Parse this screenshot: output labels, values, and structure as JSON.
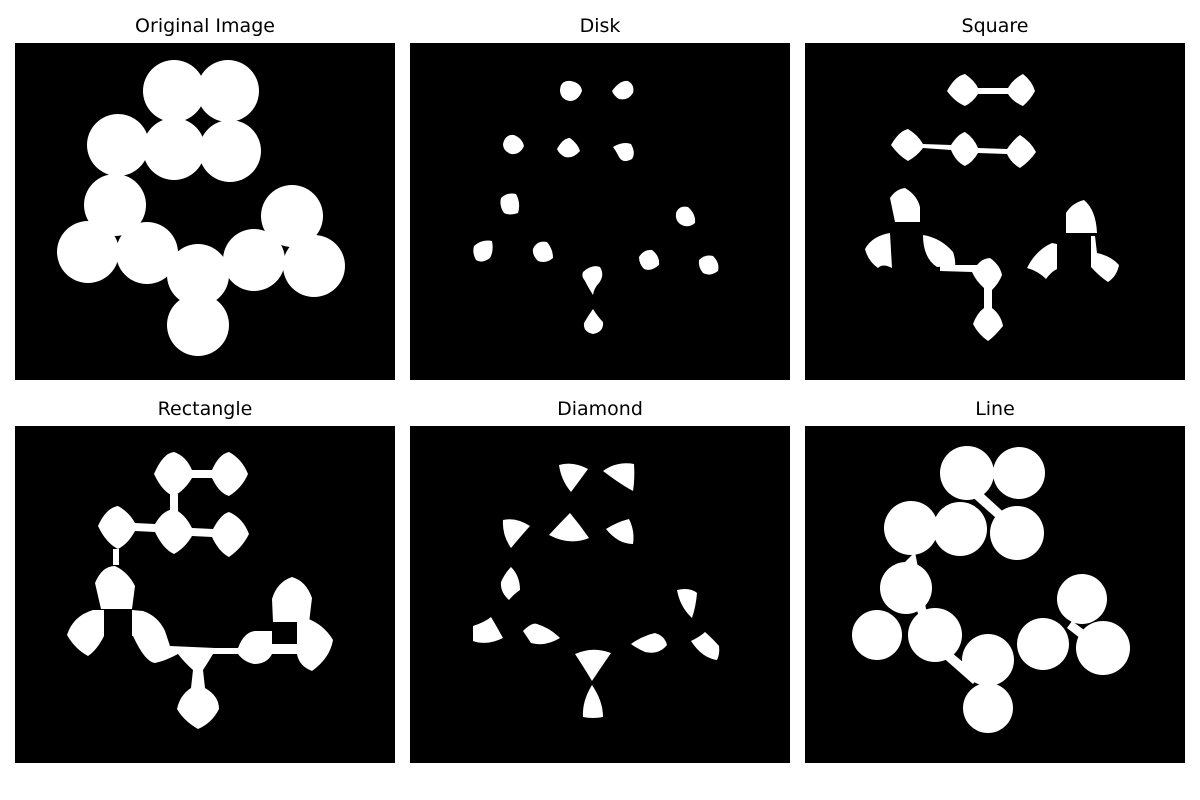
{
  "figure": {
    "panels": [
      {
        "title": "Original Image",
        "structuring_element": "none"
      },
      {
        "title": "Disk",
        "structuring_element": "disk"
      },
      {
        "title": "Square",
        "structuring_element": "square"
      },
      {
        "title": "Rectangle",
        "structuring_element": "rectangle"
      },
      {
        "title": "Diamond",
        "structuring_element": "diamond"
      },
      {
        "title": "Line",
        "structuring_element": "line"
      }
    ],
    "colors": {
      "background": "#000000",
      "foreground": "#ffffff",
      "page": "#ffffff"
    }
  }
}
